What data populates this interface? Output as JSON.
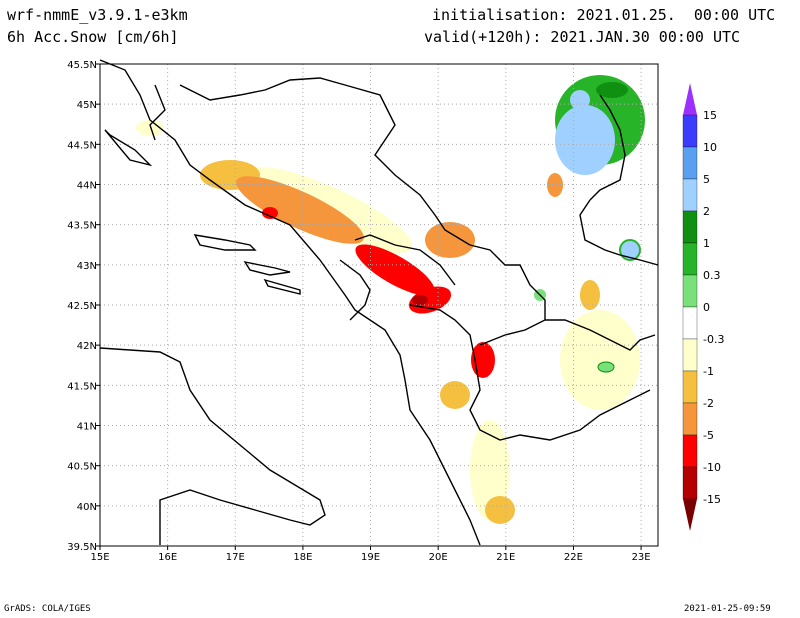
{
  "header": {
    "model": "wrf-nmmE_v3.9.1-e3km",
    "field": "6h Acc.Snow [cm/6h]",
    "init": "initialisation: 2021.01.25.  00:00 UTC",
    "valid": "valid(+120h): 2021.JAN.30 00:00 UTC"
  },
  "footer": {
    "left": "GrADS: COLA/IGES",
    "right": "2021-01-25-09:59"
  },
  "map": {
    "lon_ticks": [
      "15E",
      "16E",
      "17E",
      "18E",
      "19E",
      "20E",
      "21E",
      "22E",
      "23E"
    ],
    "lat_ticks": [
      "45.5N",
      "45N",
      "44.5N",
      "44N",
      "43.5N",
      "43N",
      "42.5N",
      "42N",
      "41.5N",
      "41N",
      "40.5N",
      "40N",
      "39.5N"
    ]
  },
  "colorbar": {
    "labels": [
      "15",
      "10",
      "5",
      "2",
      "1",
      "0.3",
      "0",
      "-0.3",
      "-1",
      "-2",
      "-5",
      "-10",
      "-15"
    ],
    "colors": [
      "#9b30ff",
      "#3c3cff",
      "#5aa0f0",
      "#a0d0ff",
      "#109010",
      "#28b428",
      "#7ae07a",
      "#ffffff",
      "#ffffcc",
      "#f5c040",
      "#f5963c",
      "#ff0000",
      "#b40000",
      "#780000"
    ]
  }
}
